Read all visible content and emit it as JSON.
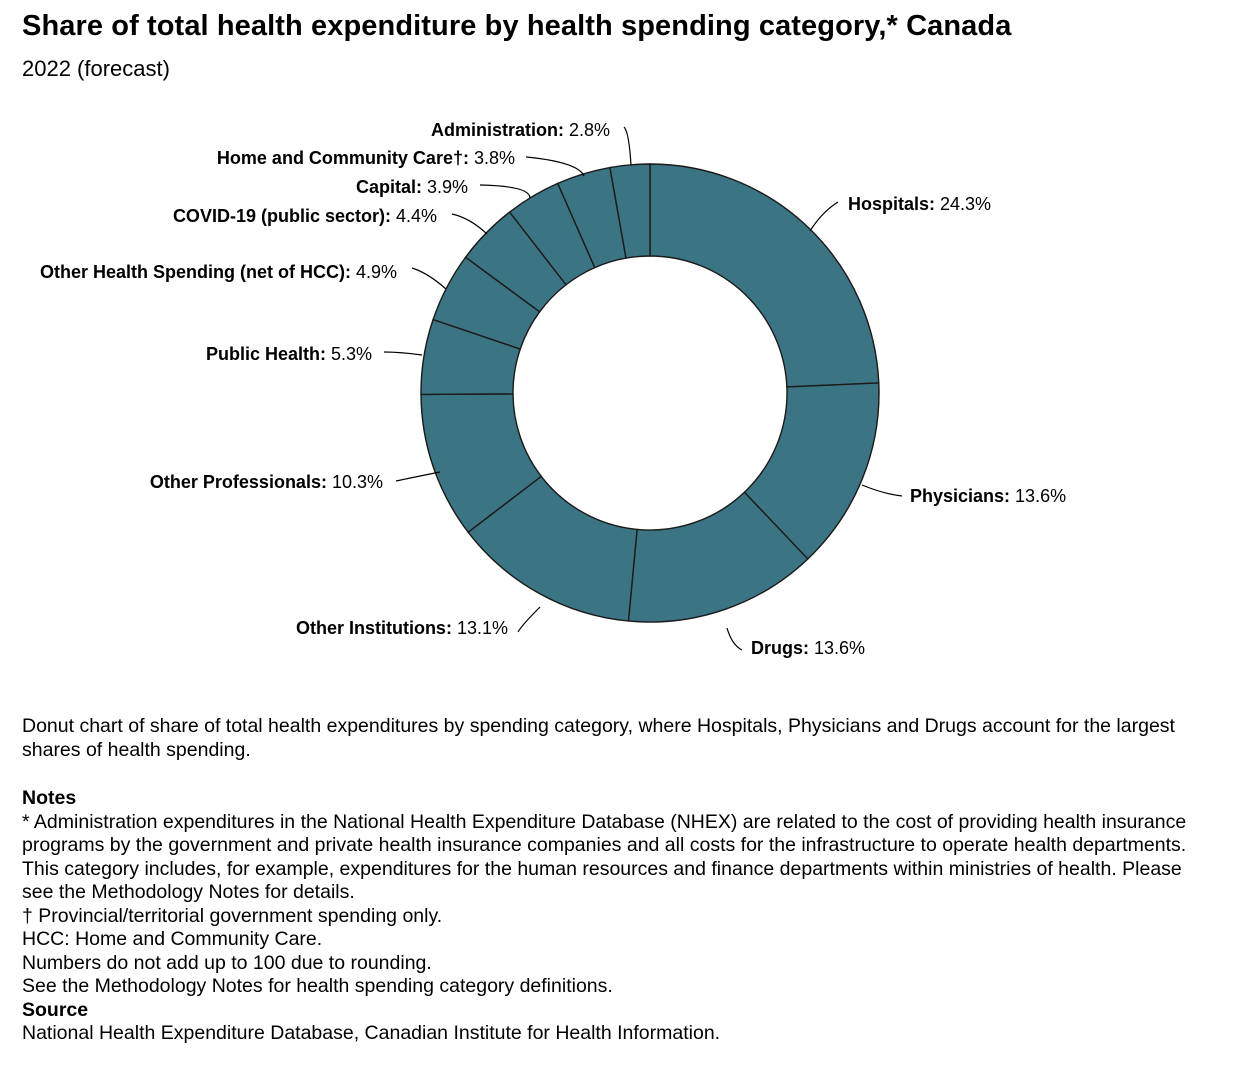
{
  "chart_data": {
    "type": "pie",
    "style": "donut",
    "title": "Share of total health expenditure by health spending category,* Canada",
    "subtitle": "2022 (forecast)",
    "unit": "%",
    "slice_color": "#3b7482",
    "slices": [
      {
        "name": "Hospitals",
        "value": 24.3
      },
      {
        "name": "Physicians",
        "value": 13.6
      },
      {
        "name": "Drugs",
        "value": 13.6
      },
      {
        "name": "Other Institutions",
        "value": 13.1
      },
      {
        "name": "Other Professionals",
        "value": 10.3
      },
      {
        "name": "Public Health",
        "value": 5.3
      },
      {
        "name": "Other Health Spending (net of HCC)",
        "value": 4.9
      },
      {
        "name": "COVID-19 (public sector)",
        "value": 4.4
      },
      {
        "name": "Capital",
        "value": 3.9
      },
      {
        "name": "Home and Community Care†",
        "value": 3.8
      },
      {
        "name": "Administration",
        "value": 2.8
      }
    ]
  },
  "description": "Donut chart of share of total health expenditures by spending category, where Hospitals, Physicians and Drugs account for the largest shares of health spending.",
  "notes": {
    "heading": "Notes",
    "lines": [
      "* Administration expenditures in the National Health Expenditure Database (NHEX) are related to the cost of providing health insurance programs by the government and private health insurance companies and all costs for the infrastructure to operate health departments. This category includes, for example, expenditures for the human resources and finance departments within ministries of health. Please see the Methodology Notes for details.",
      "† Provincial/territorial government spending only.",
      "HCC: Home and Community Care.",
      "Numbers do not add up to 100 due to rounding.",
      "See the Methodology Notes for health spending category definitions."
    ]
  },
  "source": {
    "heading": "Source",
    "text": "National Health Expenditure Database, Canadian Institute for Health Information."
  }
}
